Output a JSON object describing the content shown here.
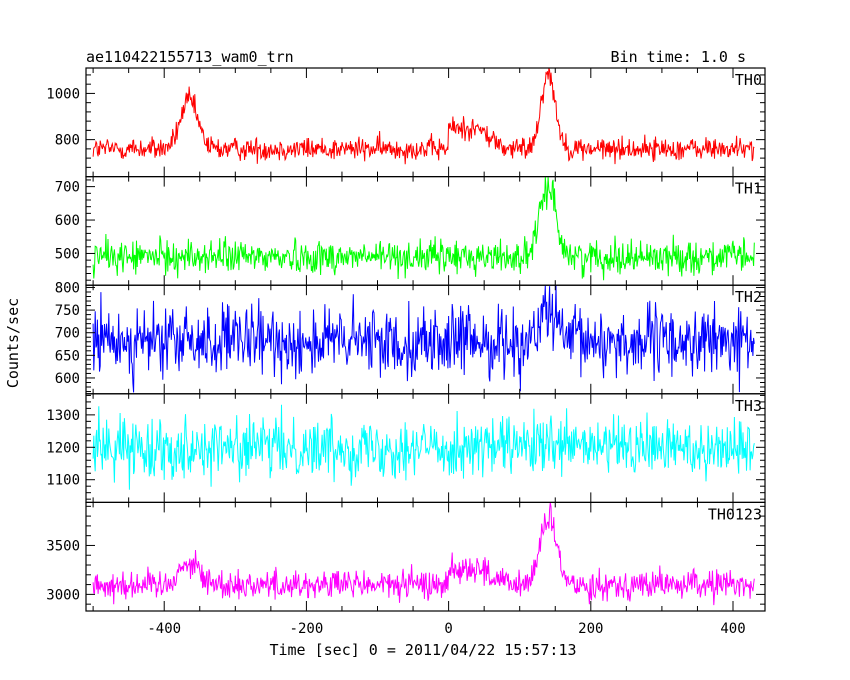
{
  "chart_data": {
    "type": "line",
    "title_left": "ae110422155713_wam0_trn",
    "title_right": "Bin time: 1.0 s",
    "xlabel": "Time [sec] 0 = 2011/04/22 15:57:13",
    "ylabel": "Counts/sec",
    "xlim": [
      -510,
      445
    ],
    "x_ticks": [
      "-400",
      "-200",
      "0",
      "200",
      "400"
    ],
    "x_range": [
      -500,
      430
    ],
    "grid": false,
    "panels": [
      {
        "name": "TH0",
        "color": "#ff0000",
        "ylim": [
          640,
          1110
        ],
        "y_ticks": [
          "800",
          "1000"
        ],
        "baseline": 760,
        "noise": 25,
        "peaks": [
          {
            "x": -365,
            "height": 210,
            "width": 12
          },
          {
            "x": 140,
            "height": 330,
            "width": 10
          }
        ],
        "plateaus": [
          {
            "x0": 0,
            "x1": 40,
            "height": 90
          }
        ]
      },
      {
        "name": "TH1",
        "color": "#00ff00",
        "ylim": [
          405,
          730
        ],
        "y_ticks": [
          "500",
          "600",
          "700"
        ],
        "baseline": 490,
        "noise": 25,
        "peaks": [
          {
            "x": 140,
            "height": 215,
            "width": 11
          }
        ],
        "plateaus": []
      },
      {
        "name": "TH2",
        "color": "#0000ff",
        "ylim": [
          565,
          805
        ],
        "y_ticks": [
          "600",
          "650",
          "700",
          "750",
          "800"
        ],
        "baseline": 680,
        "noise": 38,
        "peaks": [
          {
            "x": 140,
            "height": 75,
            "width": 10
          }
        ],
        "plateaus": []
      },
      {
        "name": "TH3",
        "color": "#00ffff",
        "ylim": [
          1030,
          1365
        ],
        "y_ticks": [
          "1100",
          "1200",
          "1300"
        ],
        "baseline": 1200,
        "noise": 45,
        "peaks": [],
        "plateaus": []
      },
      {
        "name": "TH0123",
        "color": "#ff00ff",
        "ylim": [
          2830,
          3940
        ],
        "y_ticks": [
          "3000",
          "3500"
        ],
        "baseline": 3100,
        "noise": 75,
        "peaks": [
          {
            "x": -365,
            "height": 230,
            "width": 14
          },
          {
            "x": 140,
            "height": 700,
            "width": 11
          }
        ],
        "plateaus": [
          {
            "x0": 0,
            "x1": 40,
            "height": 170
          }
        ]
      }
    ]
  }
}
